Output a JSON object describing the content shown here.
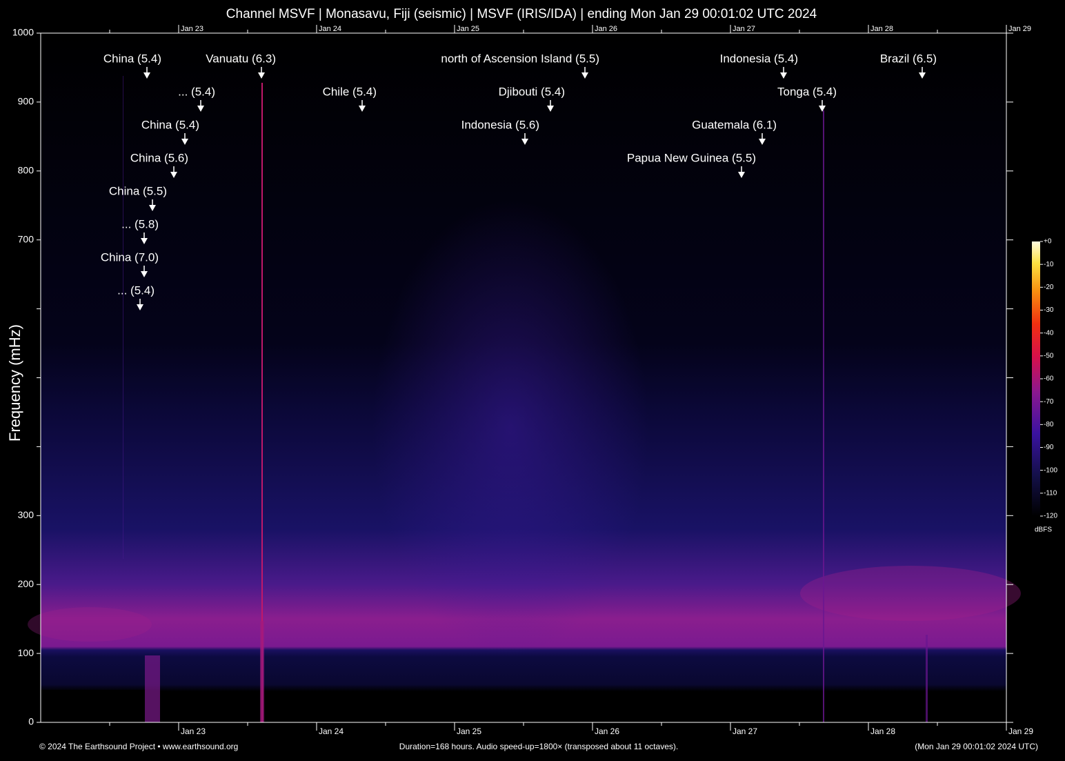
{
  "chart_data": {
    "type": "spectrogram",
    "title": "Channel MSVF | Monasavu, Fiji (seismic) | MSVF (IRIS/IDA) | ending Mon Jan 29 00:01:02 UTC 2024",
    "ylabel": "Frequency (mHz)",
    "ylim": [
      0,
      1000
    ],
    "yticks": [
      0,
      100,
      200,
      300,
      {
        "value": 400,
        "label": null
      },
      {
        "value": 500,
        "label": null
      },
      {
        "value": 600,
        "label": null
      },
      700,
      800,
      900,
      1000
    ],
    "xlim": [
      22,
      29
    ],
    "xticks": [
      {
        "value": 23,
        "label": "Jan 23"
      },
      {
        "value": 24,
        "label": "Jan 24"
      },
      {
        "value": 25,
        "label": "Jan 25"
      },
      {
        "value": 26,
        "label": "Jan 26"
      },
      {
        "value": 27,
        "label": "Jan 27"
      },
      {
        "value": 28,
        "label": "Jan 28"
      },
      {
        "value": 29,
        "label": "Jan 29"
      }
    ],
    "annotation_rows": [
      [
        {
          "text": "China (5.4)",
          "x": 22.77
        },
        {
          "text": "Vanuatu (6.3)",
          "x": 23.6
        },
        {
          "text": "north of Ascension Island (5.5)",
          "x": 25.945
        },
        {
          "text": "Indonesia (5.4)",
          "x": 27.385
        },
        {
          "text": "Brazil (6.5)",
          "x": 28.39
        }
      ],
      [
        {
          "text": "... (5.4)",
          "x": 23.16
        },
        {
          "text": "Chile (5.4)",
          "x": 24.33
        },
        {
          "text": "Djibouti (5.4)",
          "x": 25.695
        },
        {
          "text": "Tonga (5.4)",
          "x": 27.665
        }
      ],
      [
        {
          "text": "China (5.4)",
          "x": 23.045
        },
        {
          "text": "Indonesia (5.6)",
          "x": 25.51
        },
        {
          "text": "Guatemala (6.1)",
          "x": 27.23
        }
      ],
      [
        {
          "text": "China (5.6)",
          "x": 22.965
        },
        {
          "text": "Papua New Guinea (5.5)",
          "x": 27.08
        }
      ],
      [
        {
          "text": "China (5.5)",
          "x": 22.81
        }
      ],
      [
        {
          "text": "... (5.8)",
          "x": 22.75
        }
      ],
      [
        {
          "text": "China (7.0)",
          "x": 22.75
        }
      ],
      [
        {
          "text": "... (5.4)",
          "x": 22.72
        }
      ]
    ],
    "colorbar": {
      "lim": [
        -120,
        0
      ],
      "label": "dBFS",
      "ticks": [
        {
          "value": 0,
          "label": "+0"
        },
        -10,
        -20,
        -30,
        -40,
        -50,
        -60,
        -70,
        -80,
        -90,
        -100,
        -110,
        -120
      ]
    },
    "footer": {
      "left": "© 2024 The Earthsound Project • www.earthsound.org",
      "center": "Duration=168 hours. Audio speed-up=1800× (transposed about 11 octaves).",
      "right": "(Mon Jan 29 00:01:02 2024 UTC)"
    }
  }
}
